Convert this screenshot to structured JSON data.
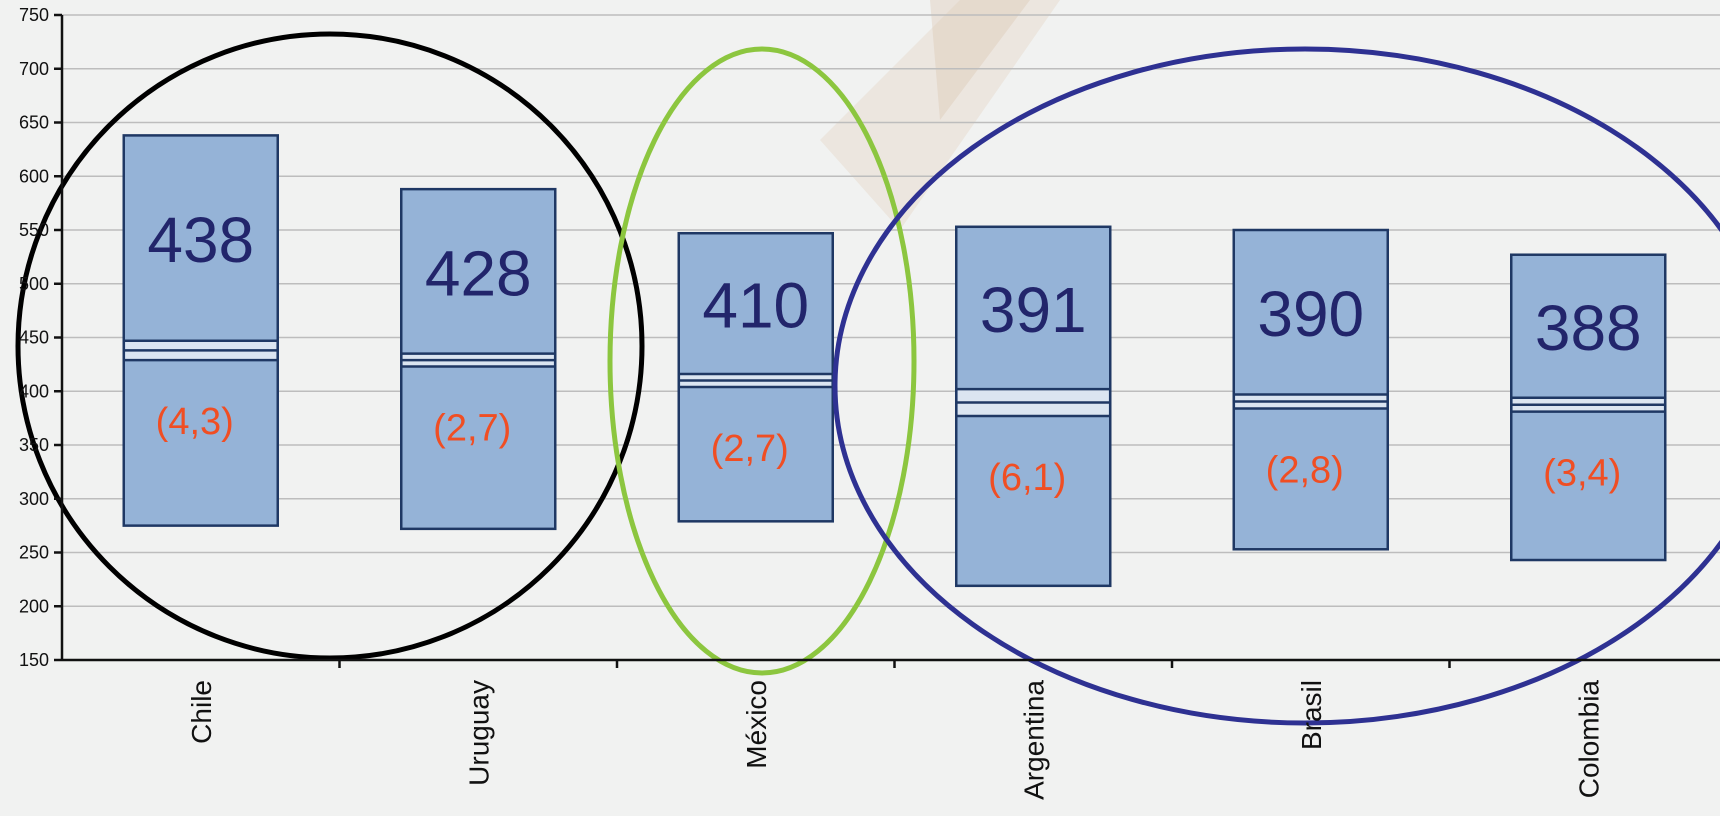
{
  "chart_data": {
    "type": "box",
    "y_ticks": [
      "150",
      "200",
      "250",
      "300",
      "350",
      "400",
      "450",
      "500",
      "550",
      "600",
      "650",
      "700",
      "750"
    ],
    "ylim": [
      150,
      750
    ],
    "grid": true,
    "categories": [
      "Chile",
      "Uruguay",
      "México",
      "Argentina",
      "Brasil",
      "Colombia"
    ],
    "mean_labels": [
      "438",
      "428",
      "410",
      "391",
      "390",
      "388"
    ],
    "se_labels": [
      "(4,3)",
      "(2,7)",
      "(2,7)",
      "(6,1)",
      "(2,8)",
      "(3,4)"
    ],
    "boxes": [
      {
        "low": 275,
        "high": 638,
        "band_low": 429,
        "band_high": 447
      },
      {
        "low": 272,
        "high": 588,
        "band_low": 423,
        "band_high": 435
      },
      {
        "low": 279,
        "high": 547,
        "band_low": 404,
        "band_high": 416
      },
      {
        "low": 219,
        "high": 553,
        "band_low": 377,
        "band_high": 402
      },
      {
        "low": 253,
        "high": 550,
        "band_low": 384,
        "band_high": 397
      },
      {
        "low": 243,
        "high": 527,
        "band_low": 381,
        "band_high": 394
      }
    ],
    "groups": [
      {
        "members": [
          "Chile",
          "Uruguay"
        ],
        "color": "#000000"
      },
      {
        "members": [
          "México"
        ],
        "color": "#8cc63f"
      },
      {
        "members": [
          "Argentina",
          "Brasil",
          "Colombia"
        ],
        "color": "#2e3192"
      }
    ],
    "colors": {
      "box_fill": "#95b3d7",
      "box_stroke": "#1f3864",
      "mean_text": "#22256b",
      "se_text": "#f04e23"
    }
  }
}
